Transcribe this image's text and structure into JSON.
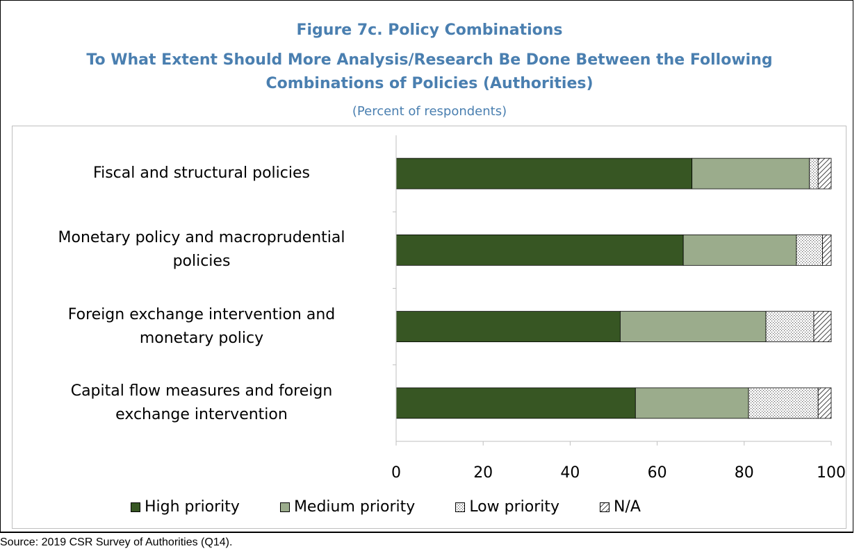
{
  "title_line1": "Figure 7c. Policy Combinations",
  "title_line2": "To What Extent Should More Analysis/Research Be Done Between the Following",
  "title_line3": "Combinations of Policies (Authorities)",
  "subtitle": "(Percent of respondents)",
  "source": "Source: 2019 CSR Survey of Authorities (Q14).",
  "colors": {
    "high": "#375623",
    "medium": "#9bac8c",
    "low": "#ffffff",
    "na": "#ffffff",
    "axis": "#bfbfbf"
  },
  "chart_data": {
    "type": "bar",
    "orientation": "horizontal",
    "stacked": true,
    "categories": [
      [
        "Fiscal and structural policies"
      ],
      [
        "Monetary policy and macroprudential",
        "policies"
      ],
      [
        "Foreign exchange intervention and",
        "monetary policy"
      ],
      [
        "Capital flow measures and foreign",
        "exchange intervention"
      ]
    ],
    "series": [
      {
        "name": "High priority",
        "pattern": "solid-dark",
        "values": [
          68,
          66,
          51.5,
          55
        ]
      },
      {
        "name": "Medium priority",
        "pattern": "solid-light",
        "values": [
          27,
          26,
          33.5,
          26
        ]
      },
      {
        "name": "Low priority",
        "pattern": "dots",
        "values": [
          2,
          6,
          11,
          16
        ]
      },
      {
        "name": "N/A",
        "pattern": "hatch",
        "values": [
          3,
          2,
          4,
          3
        ]
      }
    ],
    "xlim": [
      0,
      100
    ],
    "xticks": [
      "0",
      "20",
      "40",
      "60",
      "80",
      "100"
    ],
    "legend": "bottom",
    "grid": false
  }
}
